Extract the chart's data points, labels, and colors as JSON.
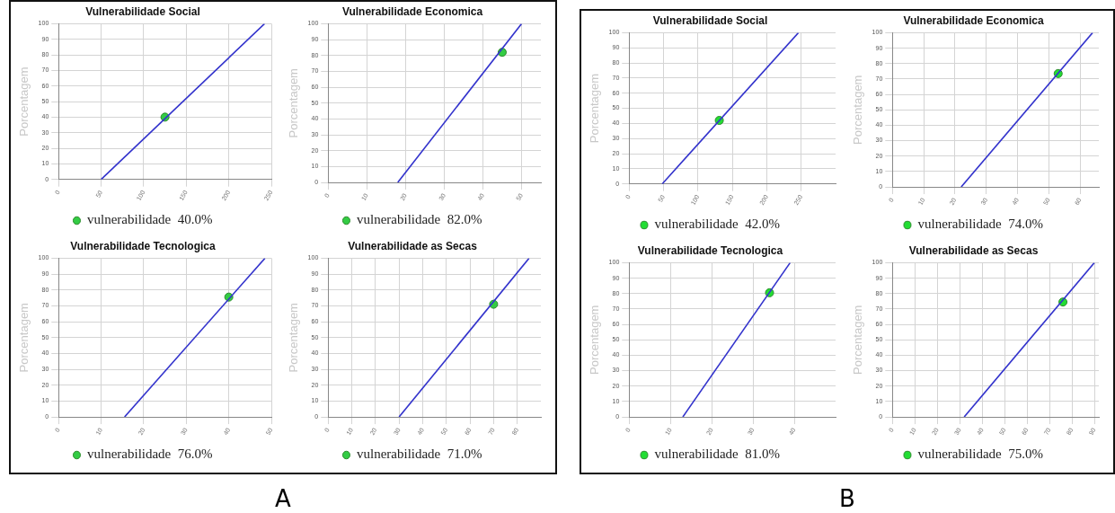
{
  "chart_data": [
    {
      "type": "line",
      "title": "Vulnerabilidade Social",
      "ylabel": "Porcentagem",
      "xlim": [
        0,
        250
      ],
      "xticks": [
        0,
        50,
        100,
        150,
        200,
        250
      ],
      "ylim": [
        0,
        100
      ],
      "yticks": [
        0,
        10,
        20,
        30,
        40,
        50,
        60,
        70,
        80,
        90,
        100
      ],
      "grid": true,
      "legend": "bottom",
      "annotations": [
        "A"
      ],
      "series": [
        {
          "color": "#3333cc",
          "marker": "none",
          "x": [
            50,
            242
          ],
          "values": [
            0,
            100
          ]
        },
        {
          "type": "scatter",
          "name": "vulnerabilidade  40.0%",
          "color": "#33cc44",
          "marker": "circle",
          "x": [
            125
          ],
          "values": [
            40
          ]
        }
      ]
    },
    {
      "type": "line",
      "title": "Vulnerabilidade Economica",
      "ylabel": "Porcentagem",
      "xlim": [
        0,
        55
      ],
      "xticks": [
        0,
        10,
        20,
        30,
        40,
        50
      ],
      "ylim": [
        0,
        100
      ],
      "yticks": [
        0,
        10,
        20,
        30,
        40,
        50,
        60,
        70,
        80,
        90,
        100
      ],
      "grid": true,
      "legend": "bottom",
      "series": [
        {
          "color": "#3333cc",
          "marker": "none",
          "x": [
            18,
            50
          ],
          "values": [
            0,
            100
          ]
        },
        {
          "type": "scatter",
          "name": "vulnerabilidade  82.0%",
          "color": "#33cc44",
          "marker": "circle",
          "x": [
            45
          ],
          "values": [
            82
          ]
        }
      ]
    },
    {
      "type": "line",
      "title": "Vulnerabilidade Tecnologica",
      "ylabel": "Porcentagem",
      "xlim": [
        0,
        50
      ],
      "xticks": [
        0,
        10,
        20,
        30,
        40,
        50
      ],
      "ylim": [
        0,
        100
      ],
      "yticks": [
        0,
        10,
        20,
        30,
        40,
        50,
        60,
        70,
        80,
        90,
        100
      ],
      "grid": true,
      "legend": "bottom",
      "series": [
        {
          "color": "#3333cc",
          "marker": "none",
          "x": [
            15.5,
            48.5
          ],
          "values": [
            0,
            100
          ]
        },
        {
          "type": "scatter",
          "name": "vulnerabilidade  76.0%",
          "color": "#33cc44",
          "marker": "circle",
          "x": [
            40
          ],
          "values": [
            75.5
          ]
        }
      ]
    },
    {
      "type": "line",
      "title": "Vulnerabilidade as Secas",
      "ylabel": "Porcentagem",
      "xlim": [
        0,
        90
      ],
      "xticks": [
        0,
        10,
        20,
        30,
        40,
        50,
        60,
        70,
        80
      ],
      "ylim": [
        0,
        100
      ],
      "yticks": [
        0,
        10,
        20,
        30,
        40,
        50,
        60,
        70,
        80,
        90,
        100
      ],
      "grid": true,
      "legend": "bottom",
      "series": [
        {
          "color": "#3333cc",
          "marker": "none",
          "x": [
            30,
            85
          ],
          "values": [
            0,
            100
          ]
        },
        {
          "type": "scatter",
          "name": "vulnerabilidade  71.0%",
          "color": "#33cc44",
          "marker": "circle",
          "x": [
            70
          ],
          "values": [
            71
          ]
        }
      ]
    },
    {
      "type": "line",
      "title": "Vulnerabilidade Social",
      "ylabel": "Porcentagem",
      "xlim": [
        0,
        300
      ],
      "xticks": [
        0,
        50,
        100,
        150,
        200,
        250
      ],
      "ylim": [
        0,
        100
      ],
      "yticks": [
        0,
        10,
        20,
        30,
        40,
        50,
        60,
        70,
        80,
        90,
        100
      ],
      "grid": true,
      "legend": "bottom",
      "annotations": [
        "B"
      ],
      "series": [
        {
          "color": "#3333cc",
          "marker": "none",
          "x": [
            48,
            246
          ],
          "values": [
            0,
            100
          ]
        },
        {
          "type": "scatter",
          "name": "vulnerabilidade  42.0%",
          "color": "#22dd33",
          "marker": "circle",
          "x": [
            131
          ],
          "values": [
            42
          ]
        }
      ]
    },
    {
      "type": "line",
      "title": "Vulnerabilidade Economica",
      "ylabel": "Porcentagem",
      "xlim": [
        0,
        66
      ],
      "xticks": [
        0,
        10,
        20,
        30,
        40,
        50,
        60
      ],
      "ylim": [
        0,
        100
      ],
      "yticks": [
        0,
        10,
        20,
        30,
        40,
        50,
        60,
        70,
        80,
        90,
        100
      ],
      "grid": true,
      "legend": "bottom",
      "series": [
        {
          "color": "#3333cc",
          "marker": "none",
          "x": [
            22,
            64
          ],
          "values": [
            0,
            100
          ]
        },
        {
          "type": "scatter",
          "name": "vulnerabilidade  74.0%",
          "color": "#22dd33",
          "marker": "circle",
          "x": [
            53
          ],
          "values": [
            73.5
          ]
        }
      ]
    },
    {
      "type": "line",
      "title": "Vulnerabilidade Tecnologica",
      "ylabel": "Porcentagem",
      "xlim": [
        0,
        50
      ],
      "xticks": [
        0,
        10,
        20,
        30,
        40
      ],
      "ylim": [
        0,
        100
      ],
      "yticks": [
        0,
        10,
        20,
        30,
        40,
        50,
        60,
        70,
        80,
        90,
        100
      ],
      "grid": true,
      "legend": "bottom",
      "series": [
        {
          "color": "#3333cc",
          "marker": "none",
          "x": [
            13,
            39
          ],
          "values": [
            0,
            100
          ]
        },
        {
          "type": "scatter",
          "name": "vulnerabilidade  81.0%",
          "color": "#22dd33",
          "marker": "circle",
          "x": [
            34
          ],
          "values": [
            80.5
          ]
        }
      ]
    },
    {
      "type": "line",
      "title": "Vulnerabilidade as Secas",
      "ylabel": "Porcentagem",
      "xlim": [
        0,
        92
      ],
      "xticks": [
        0,
        10,
        20,
        30,
        40,
        50,
        60,
        70,
        80,
        90
      ],
      "ylim": [
        0,
        100
      ],
      "yticks": [
        0,
        10,
        20,
        30,
        40,
        50,
        60,
        70,
        80,
        90,
        100
      ],
      "grid": true,
      "legend": "bottom",
      "series": [
        {
          "color": "#3333cc",
          "marker": "none",
          "x": [
            32,
            90
          ],
          "values": [
            0,
            100
          ]
        },
        {
          "type": "scatter",
          "name": "vulnerabilidade  75.0%",
          "color": "#22dd33",
          "marker": "circle",
          "x": [
            76
          ],
          "values": [
            74.5
          ]
        }
      ]
    }
  ]
}
